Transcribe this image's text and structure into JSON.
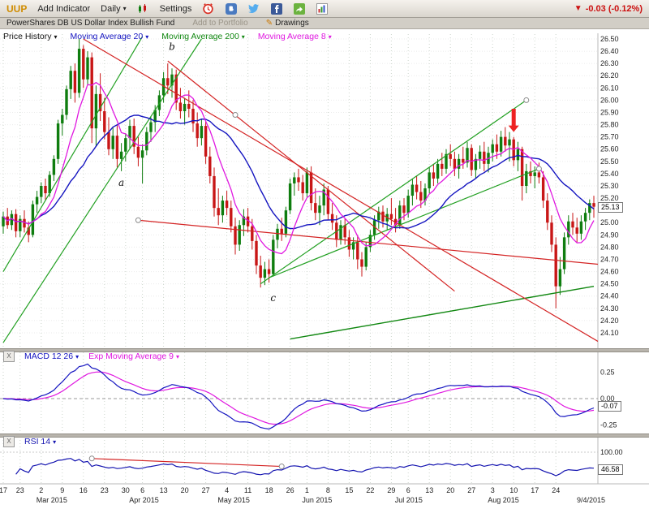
{
  "toolbar": {
    "symbol": "UUP",
    "add_indicator": "Add Indicator",
    "timeframe": "Daily",
    "settings": "Settings",
    "icon_names": [
      "alarm-icon",
      "blog-icon",
      "twitter-icon",
      "facebook-icon",
      "share-icon",
      "chart-icon"
    ],
    "change": "-0.03 (-0.12%)",
    "change_color": "#cc1111"
  },
  "subbar": {
    "name": "PowerShares DB US Dollar Index Bullish Fund",
    "add_to_portfolio": "Add to Portfolio",
    "drawings": "Drawings"
  },
  "icons": {
    "caret": "▾",
    "down_arrow": "▼",
    "close": "X",
    "pencil": "✎"
  },
  "legend": {
    "items": [
      {
        "label": "Price History",
        "color": "#141414"
      },
      {
        "label": "Moving Average 20",
        "color": "#1414c0"
      },
      {
        "label": "Moving Average 200",
        "color": "#128812"
      },
      {
        "label": "Moving Average 8",
        "color": "#e018e0"
      }
    ]
  },
  "chart_data": {
    "type": "candlestick",
    "symbol": "UUP",
    "timeframe": "Daily",
    "last_price": "25.13",
    "price_axis": {
      "min": 24.1,
      "max": 26.5,
      "step": 0.1
    },
    "colors": {
      "up": "#0f7d0f",
      "down": "#c81616",
      "ma20": "#1414c0",
      "ma8": "#e018e0",
      "ma200": "#128812",
      "trend_up": "#22a022",
      "trend_down": "#d42424",
      "macd": "#1414c0",
      "macd_signal": "#e018e0",
      "rsi": "#1414b0",
      "arrow": "#ee2222"
    },
    "candles": [
      [
        24.97,
        25.09,
        24.91,
        25.05
      ],
      [
        25.05,
        25.12,
        24.95,
        24.98
      ],
      [
        24.98,
        25.1,
        24.94,
        25.07
      ],
      [
        25.07,
        25.11,
        24.88,
        24.93
      ],
      [
        24.93,
        25.06,
        24.88,
        25.03
      ],
      [
        25.03,
        25.1,
        24.92,
        24.96
      ],
      [
        24.96,
        25.01,
        24.84,
        24.9
      ],
      [
        24.9,
        25.18,
        24.88,
        25.15
      ],
      [
        25.15,
        25.26,
        25.08,
        25.21
      ],
      [
        25.21,
        25.33,
        25.16,
        25.3
      ],
      [
        25.3,
        25.36,
        25.18,
        25.24
      ],
      [
        25.24,
        25.42,
        25.21,
        25.39
      ],
      [
        25.39,
        25.55,
        25.34,
        25.52
      ],
      [
        25.52,
        25.84,
        25.48,
        25.81
      ],
      [
        25.81,
        25.93,
        25.71,
        25.88
      ],
      [
        25.88,
        26.12,
        25.84,
        26.09
      ],
      [
        26.09,
        26.28,
        26.01,
        26.24
      ],
      [
        26.24,
        26.3,
        25.98,
        26.06
      ],
      [
        26.06,
        26.5,
        26.02,
        26.42
      ],
      [
        26.42,
        26.45,
        26.1,
        26.17
      ],
      [
        26.17,
        26.4,
        26.12,
        26.35
      ],
      [
        26.35,
        26.39,
        25.65,
        25.77
      ],
      [
        25.77,
        26.12,
        25.62,
        26.05
      ],
      [
        26.05,
        26.22,
        25.83,
        25.91
      ],
      [
        25.91,
        26.02,
        25.68,
        25.74
      ],
      [
        25.74,
        25.86,
        25.55,
        25.6
      ],
      [
        25.6,
        25.78,
        25.52,
        25.71
      ],
      [
        25.71,
        25.8,
        25.45,
        25.52
      ],
      [
        25.52,
        25.65,
        25.42,
        25.58
      ],
      [
        25.58,
        25.73,
        25.5,
        25.69
      ],
      [
        25.69,
        25.84,
        25.6,
        25.79
      ],
      [
        25.79,
        25.85,
        25.56,
        25.62
      ],
      [
        25.62,
        25.7,
        25.46,
        25.53
      ],
      [
        25.53,
        25.64,
        25.32,
        25.59
      ],
      [
        25.59,
        25.78,
        25.55,
        25.74
      ],
      [
        25.74,
        25.86,
        25.66,
        25.82
      ],
      [
        25.82,
        25.96,
        25.74,
        25.92
      ],
      [
        25.92,
        26.08,
        25.87,
        26.04
      ],
      [
        26.04,
        26.23,
        25.98,
        26.18
      ],
      [
        26.18,
        26.3,
        26.05,
        26.12
      ],
      [
        26.12,
        26.26,
        26.02,
        26.21
      ],
      [
        26.21,
        26.25,
        25.92,
        25.98
      ],
      [
        25.98,
        26.1,
        25.85,
        25.91
      ],
      [
        25.91,
        26.02,
        25.8,
        25.97
      ],
      [
        25.97,
        26.08,
        25.86,
        25.93
      ],
      [
        25.93,
        26.0,
        25.74,
        25.81
      ],
      [
        25.81,
        25.9,
        25.62,
        25.69
      ],
      [
        25.69,
        25.85,
        25.63,
        25.79
      ],
      [
        25.79,
        25.83,
        25.48,
        25.54
      ],
      [
        25.54,
        25.62,
        25.32,
        25.38
      ],
      [
        25.38,
        25.45,
        25.05,
        25.12
      ],
      [
        25.12,
        25.28,
        24.98,
        25.06
      ],
      [
        25.06,
        25.22,
        25.0,
        25.18
      ],
      [
        25.18,
        25.26,
        25.06,
        25.12
      ],
      [
        25.12,
        25.18,
        24.92,
        24.97
      ],
      [
        24.97,
        25.04,
        24.74,
        24.82
      ],
      [
        24.82,
        25.02,
        24.77,
        24.98
      ],
      [
        24.98,
        25.11,
        24.89,
        25.05
      ],
      [
        25.05,
        25.12,
        24.92,
        24.97
      ],
      [
        24.97,
        25.03,
        24.78,
        24.85
      ],
      [
        24.85,
        24.9,
        24.58,
        24.65
      ],
      [
        24.65,
        24.73,
        24.47,
        24.55
      ],
      [
        24.55,
        24.68,
        24.49,
        24.62
      ],
      [
        24.62,
        24.7,
        24.51,
        24.58
      ],
      [
        24.58,
        24.9,
        24.56,
        24.86
      ],
      [
        24.86,
        24.99,
        24.79,
        24.95
      ],
      [
        24.95,
        25.04,
        24.85,
        24.91
      ],
      [
        24.91,
        25.13,
        24.88,
        25.1
      ],
      [
        25.1,
        25.36,
        25.07,
        25.32
      ],
      [
        25.32,
        25.41,
        25.22,
        25.37
      ],
      [
        25.37,
        25.44,
        25.26,
        25.33
      ],
      [
        25.33,
        25.39,
        25.18,
        25.24
      ],
      [
        25.24,
        25.45,
        25.21,
        25.41
      ],
      [
        25.41,
        25.46,
        25.1,
        25.16
      ],
      [
        25.16,
        25.28,
        25.02,
        25.08
      ],
      [
        25.08,
        25.22,
        24.98,
        25.14
      ],
      [
        25.14,
        25.32,
        25.06,
        25.27
      ],
      [
        25.27,
        25.3,
        25.02,
        25.07
      ],
      [
        25.07,
        25.16,
        24.94,
        25.0
      ],
      [
        25.0,
        25.06,
        24.8,
        24.86
      ],
      [
        24.86,
        25.02,
        24.82,
        24.98
      ],
      [
        24.98,
        25.03,
        24.82,
        24.88
      ],
      [
        24.88,
        24.94,
        24.72,
        24.78
      ],
      [
        24.78,
        24.88,
        24.7,
        24.84
      ],
      [
        24.84,
        24.9,
        24.62,
        24.7
      ],
      [
        24.7,
        24.76,
        24.56,
        24.64
      ],
      [
        24.64,
        24.84,
        24.61,
        24.8
      ],
      [
        24.8,
        24.94,
        24.76,
        24.9
      ],
      [
        24.9,
        25.06,
        24.86,
        25.02
      ],
      [
        25.02,
        25.13,
        24.95,
        25.09
      ],
      [
        25.09,
        25.14,
        24.96,
        25.01
      ],
      [
        25.01,
        25.12,
        24.94,
        25.07
      ],
      [
        25.07,
        25.2,
        24.98,
        25.03
      ],
      [
        25.03,
        25.12,
        24.92,
        24.98
      ],
      [
        24.98,
        25.18,
        24.95,
        25.14
      ],
      [
        25.14,
        25.2,
        25.02,
        25.08
      ],
      [
        25.08,
        25.27,
        25.04,
        25.22
      ],
      [
        25.22,
        25.36,
        25.14,
        25.31
      ],
      [
        25.31,
        25.38,
        25.19,
        25.25
      ],
      [
        25.25,
        25.34,
        25.12,
        25.18
      ],
      [
        25.18,
        25.32,
        25.14,
        25.28
      ],
      [
        25.28,
        25.45,
        25.24,
        25.41
      ],
      [
        25.41,
        25.48,
        25.3,
        25.36
      ],
      [
        25.36,
        25.52,
        25.32,
        25.48
      ],
      [
        25.48,
        25.57,
        25.38,
        25.44
      ],
      [
        25.44,
        25.6,
        25.4,
        25.56
      ],
      [
        25.56,
        25.64,
        25.46,
        25.52
      ],
      [
        25.52,
        25.58,
        25.38,
        25.44
      ],
      [
        25.44,
        25.56,
        25.36,
        25.52
      ],
      [
        25.52,
        25.62,
        25.44,
        25.49
      ],
      [
        25.49,
        25.66,
        25.45,
        25.61
      ],
      [
        25.61,
        25.64,
        25.38,
        25.43
      ],
      [
        25.43,
        25.56,
        25.36,
        25.52
      ],
      [
        25.52,
        25.63,
        25.44,
        25.58
      ],
      [
        25.58,
        25.66,
        25.42,
        25.48
      ],
      [
        25.48,
        25.62,
        25.41,
        25.57
      ],
      [
        25.57,
        25.68,
        25.5,
        25.64
      ],
      [
        25.64,
        25.72,
        25.52,
        25.58
      ],
      [
        25.58,
        25.75,
        25.54,
        25.7
      ],
      [
        25.7,
        25.78,
        25.58,
        25.63
      ],
      [
        25.63,
        25.74,
        25.5,
        25.68
      ],
      [
        25.68,
        25.7,
        25.46,
        25.51
      ],
      [
        25.51,
        25.66,
        25.42,
        25.6
      ],
      [
        25.6,
        25.62,
        25.18,
        25.3
      ],
      [
        25.3,
        25.48,
        25.24,
        25.42
      ],
      [
        25.42,
        25.5,
        25.32,
        25.38
      ],
      [
        25.38,
        25.46,
        25.28,
        25.41
      ],
      [
        25.41,
        25.49,
        25.32,
        25.37
      ],
      [
        25.37,
        25.42,
        25.12,
        25.18
      ],
      [
        25.18,
        25.24,
        24.94,
        25.0
      ],
      [
        25.0,
        25.06,
        24.76,
        24.82
      ],
      [
        24.82,
        24.88,
        24.3,
        24.48
      ],
      [
        24.48,
        24.72,
        24.41,
        24.62
      ],
      [
        24.62,
        24.92,
        24.58,
        24.88
      ],
      [
        24.88,
        25.06,
        24.82,
        25.01
      ],
      [
        25.01,
        25.08,
        24.9,
        24.96
      ],
      [
        24.96,
        25.04,
        24.84,
        24.91
      ],
      [
        24.91,
        25.06,
        24.86,
        25.01
      ],
      [
        25.01,
        25.12,
        24.94,
        25.08
      ],
      [
        25.08,
        25.19,
        25.02,
        25.16
      ],
      [
        25.16,
        25.22,
        25.04,
        25.13
      ]
    ],
    "moving_averages": [
      {
        "period": 20,
        "color_key": "ma20"
      },
      {
        "period": 8,
        "color_key": "ma8"
      }
    ],
    "ma200_line": {
      "p1": [
        68,
        24.05
      ],
      "p2": [
        140,
        24.48
      ]
    },
    "trendlines": [
      {
        "p1": [
          0,
          24.6
        ],
        "p2": [
          33,
          26.52
        ],
        "color": "trend_up"
      },
      {
        "p1": [
          0,
          24.02
        ],
        "p2": [
          47,
          26.5
        ],
        "color": "trend_up"
      },
      {
        "p1": [
          61,
          24.5
        ],
        "p2": [
          124,
          26.0
        ],
        "color": "trend_up"
      },
      {
        "p1": [
          63,
          24.55
        ],
        "p2": [
          127,
          25.44
        ],
        "color": "trend_up"
      },
      {
        "p1": [
          19,
          26.5
        ],
        "p2": [
          141,
          24.03
        ],
        "color": "trend_down"
      },
      {
        "p1": [
          39,
          26.32
        ],
        "p2": [
          107,
          24.44
        ],
        "color": "trend_down"
      },
      {
        "p1": [
          32,
          25.02
        ],
        "p2": [
          141,
          24.66
        ],
        "color": "trend_down"
      }
    ],
    "handles": [
      [
        124,
        26.0
      ],
      [
        127,
        25.44
      ],
      [
        32,
        25.02
      ],
      [
        55,
        25.88
      ]
    ],
    "wave_labels": [
      {
        "text": "a",
        "i": 28,
        "price": 25.3
      },
      {
        "text": "b",
        "i": 40,
        "price": 26.41
      },
      {
        "text": "c",
        "i": 64,
        "price": 24.36
      }
    ],
    "arrow": {
      "i": 121,
      "from": 25.93,
      "to": 25.74
    },
    "macd": {
      "label": "MACD 12 26",
      "signal_label": "Exp Moving Average 9",
      "fast": 12,
      "slow": 26,
      "signal": 9,
      "axis": [
        0.25,
        0,
        -0.25
      ],
      "value": "-0.07"
    },
    "rsi": {
      "label": "RSI 14",
      "period": 14,
      "axis": [
        100
      ],
      "value": "46.58",
      "trendline": {
        "p1": [
          21,
          80
        ],
        "p2": [
          66,
          55
        ]
      }
    },
    "ticks": [
      {
        "l": "17",
        "i": 0
      },
      {
        "l": "23",
        "i": 4
      },
      {
        "l": "2",
        "i": 9
      },
      {
        "l": "9",
        "i": 14
      },
      {
        "l": "16",
        "i": 19
      },
      {
        "l": "23",
        "i": 24
      },
      {
        "l": "30",
        "i": 29
      },
      {
        "l": "6",
        "i": 33
      },
      {
        "l": "13",
        "i": 38
      },
      {
        "l": "20",
        "i": 43
      },
      {
        "l": "27",
        "i": 48
      },
      {
        "l": "4",
        "i": 53
      },
      {
        "l": "11",
        "i": 58
      },
      {
        "l": "18",
        "i": 63
      },
      {
        "l": "26",
        "i": 68
      },
      {
        "l": "1",
        "i": 72
      },
      {
        "l": "8",
        "i": 77
      },
      {
        "l": "15",
        "i": 82
      },
      {
        "l": "22",
        "i": 87
      },
      {
        "l": "29",
        "i": 92
      },
      {
        "l": "6",
        "i": 96
      },
      {
        "l": "13",
        "i": 101
      },
      {
        "l": "20",
        "i": 106
      },
      {
        "l": "27",
        "i": 111
      },
      {
        "l": "3",
        "i": 116
      },
      {
        "l": "10",
        "i": 121
      },
      {
        "l": "17",
        "i": 126
      },
      {
        "l": "24",
        "i": 131
      }
    ],
    "months": [
      {
        "l": "Mar 2015",
        "i": 9
      },
      {
        "l": "Apr 2015",
        "i": 31
      },
      {
        "l": "May 2015",
        "i": 52
      },
      {
        "l": "Jun 2015",
        "i": 72
      },
      {
        "l": "Jul 2015",
        "i": 94
      },
      {
        "l": "Aug 2015",
        "i": 116
      }
    ],
    "last_date": "9/4/2015"
  }
}
